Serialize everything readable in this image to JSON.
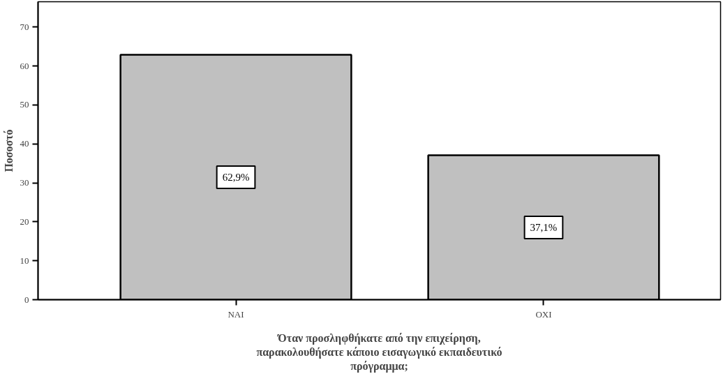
{
  "chart_data": {
    "type": "bar",
    "categories": [
      "ΝΑΙ",
      "ΟΧΙ"
    ],
    "values": [
      62.9,
      37.1
    ],
    "color": "#c0c0c0",
    "value_labels": [
      "62,9%",
      "37,1%"
    ],
    "xlabel": "Όταν προσληφθήκατε από την επιχείρηση, παρακολουθήσατε κάποιο εισαγωγικό εκπαιδευτικό πρόγραμμα;",
    "ylabel": "Ποσοστό",
    "ylim": [
      0,
      76.5
    ],
    "yticks": [
      0,
      10,
      20,
      30,
      40,
      50,
      60,
      70
    ],
    "grid": false
  }
}
